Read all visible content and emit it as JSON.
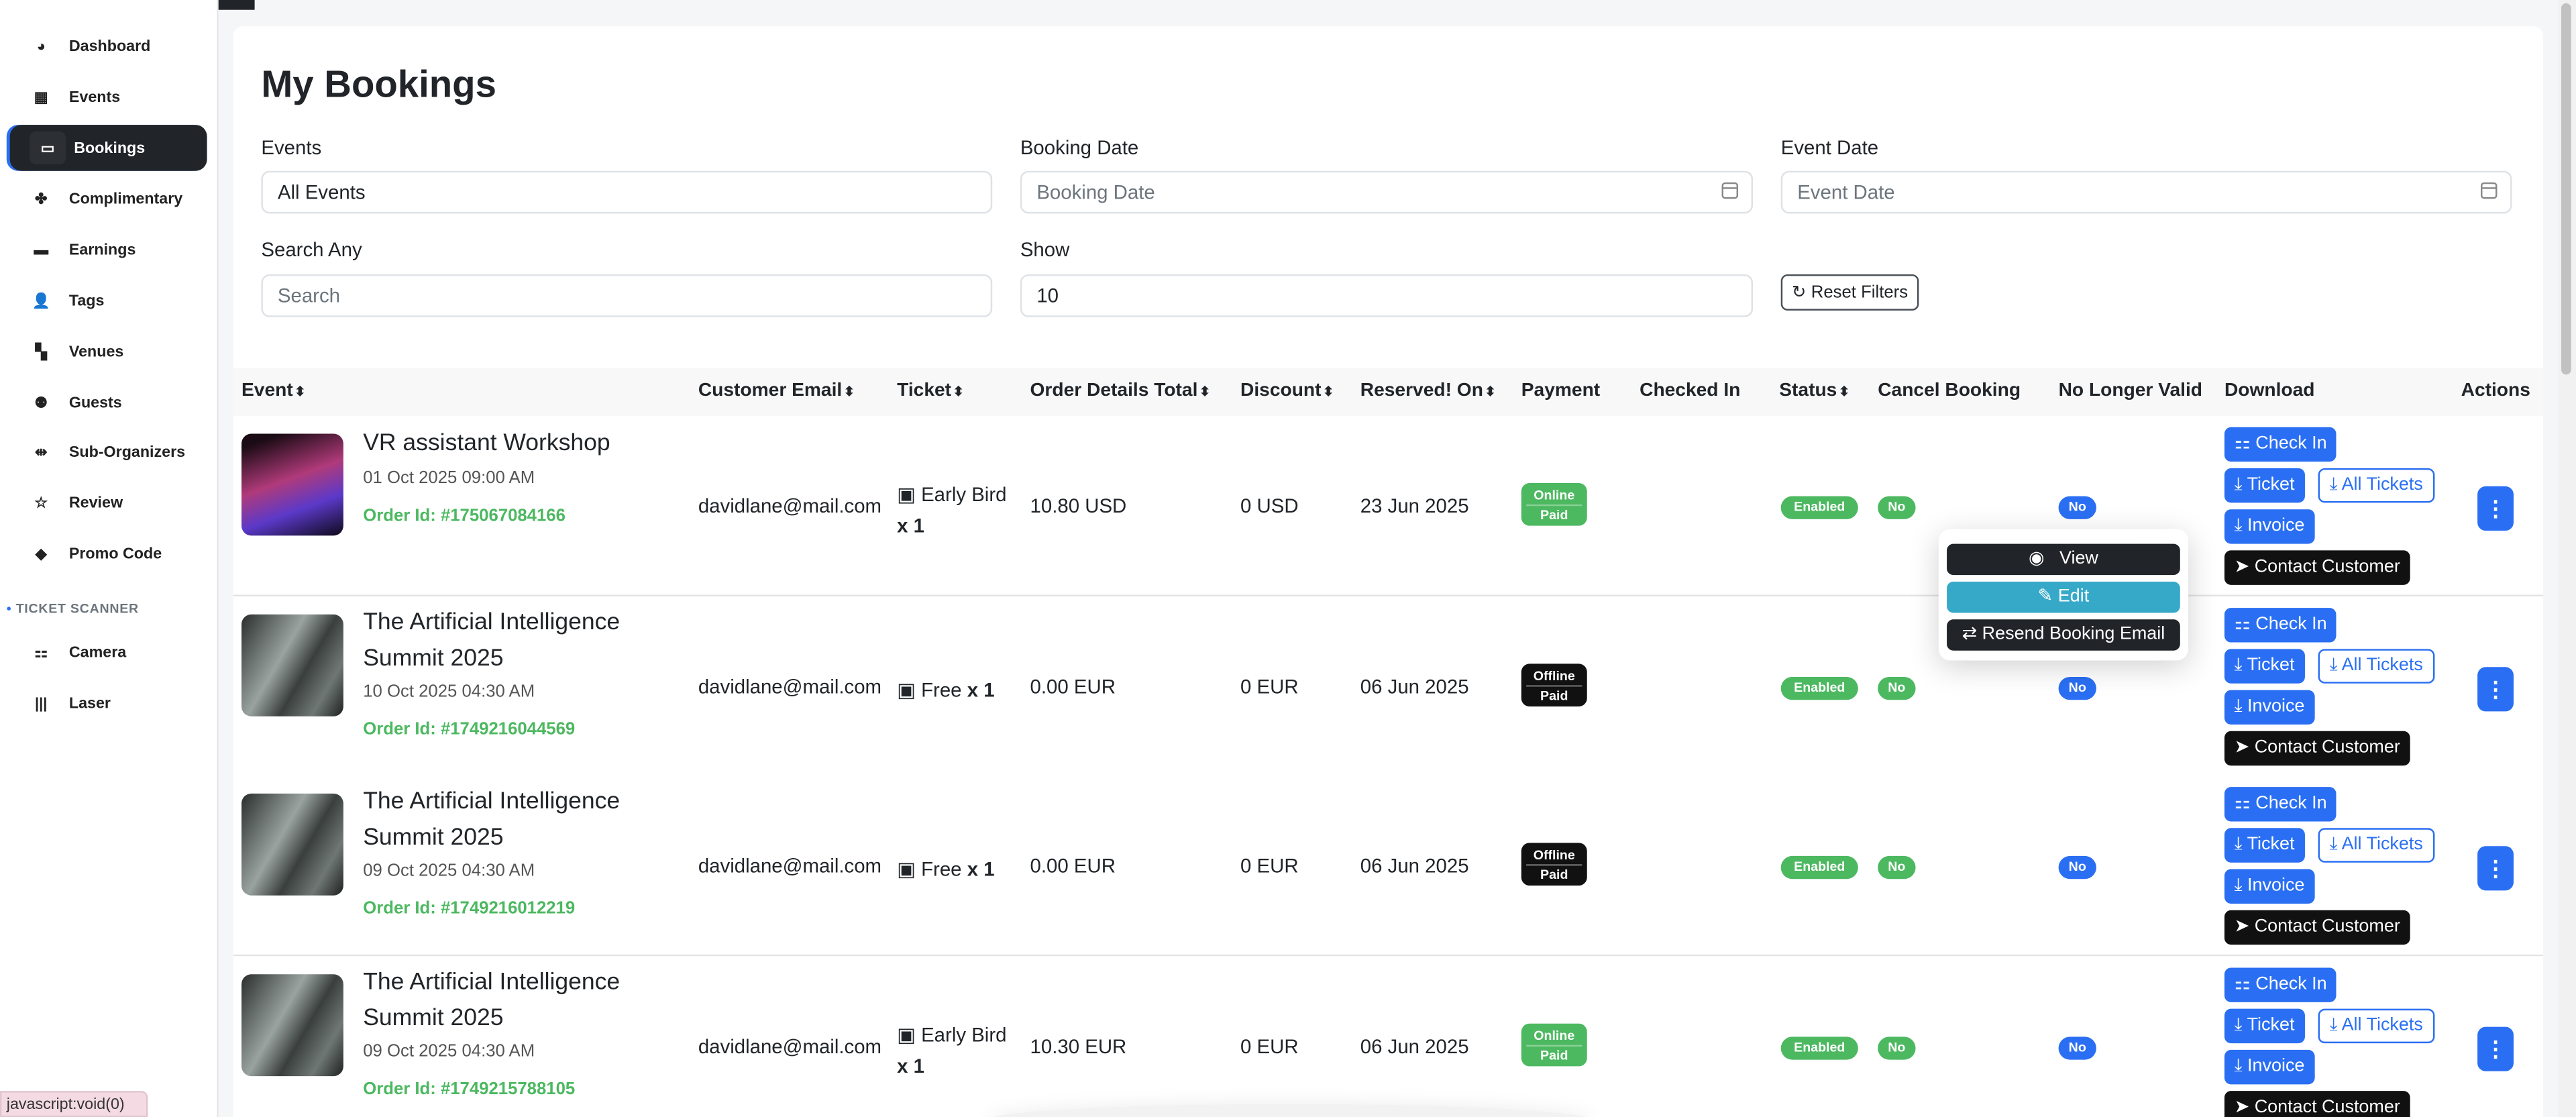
{
  "sidebar": {
    "items": [
      {
        "label": "Dashboard",
        "icon": "gauge-icon",
        "glyph": "◕"
      },
      {
        "label": "Events",
        "icon": "calendar-icon",
        "glyph": "▦"
      },
      {
        "label": "Bookings",
        "icon": "money-ticket-icon",
        "glyph": "▭",
        "active": true
      },
      {
        "label": "Complimentary",
        "icon": "puzzle-icon",
        "glyph": "✤"
      },
      {
        "label": "Earnings",
        "icon": "wallet-icon",
        "glyph": "▬"
      },
      {
        "label": "Tags",
        "icon": "user-tag-icon",
        "glyph": "👤"
      },
      {
        "label": "Venues",
        "icon": "map-icon",
        "glyph": "▚"
      },
      {
        "label": "Guests",
        "icon": "people-group-icon",
        "glyph": "⚉"
      },
      {
        "label": "Sub-Organizers",
        "icon": "people-arrows-icon",
        "glyph": "⇹"
      },
      {
        "label": "Review",
        "icon": "star-icon",
        "glyph": "☆"
      },
      {
        "label": "Promo Code",
        "icon": "tag-icon",
        "glyph": "◆"
      }
    ],
    "section_label": "TICKET SCANNER",
    "scanner_items": [
      {
        "label": "Camera",
        "icon": "qrcode-icon",
        "glyph": "⚏"
      },
      {
        "label": "Laser",
        "icon": "barcode-icon",
        "glyph": "|||"
      }
    ]
  },
  "page": {
    "title": "My Bookings"
  },
  "filters": {
    "events": {
      "label": "Events",
      "value": "All Events"
    },
    "booking_date": {
      "label": "Booking Date",
      "placeholder": "Booking Date"
    },
    "event_date": {
      "label": "Event Date",
      "placeholder": "Event Date"
    },
    "search": {
      "label": "Search Any",
      "placeholder": "Search"
    },
    "show": {
      "label": "Show",
      "value": "10"
    },
    "reset_label": "Reset Filters"
  },
  "table": {
    "headers": [
      "Event",
      "Customer Email",
      "Ticket",
      "Order Details Total",
      "Discount",
      "Reserved! On",
      "Payment",
      "Checked In",
      "Status",
      "Cancel Booking",
      "No Longer Valid",
      "Download",
      "Actions"
    ],
    "sortable": [
      true,
      true,
      true,
      true,
      true,
      true,
      false,
      false,
      true,
      false,
      false,
      false,
      false
    ],
    "rows": [
      {
        "title": "VR assistant Workshop",
        "date": "01 Oct 2025 09:00 AM",
        "order": "Order Id: #175067084166",
        "email": "davidlane@mail.com",
        "ticket": "Early Bird",
        "qty": "x 1",
        "total": "10.80 USD",
        "discount": "0 USD",
        "reserved": "23 Jun 2025",
        "payment": [
          "Online",
          "Paid"
        ],
        "payment_type": "online",
        "status": "Enabled",
        "cancel": "No",
        "no_longer_valid": "No",
        "thumb": "vr"
      },
      {
        "title": "The Artificial Intelligence Summit 2025",
        "date": "10 Oct 2025 04:30 AM",
        "order": "Order Id: #1749216044569",
        "email": "davidlane@mail.com",
        "ticket": "Free",
        "qty": "x 1",
        "total": "0.00 EUR",
        "discount": "0 EUR",
        "reserved": "06 Jun 2025",
        "payment": [
          "Offline",
          "Paid"
        ],
        "payment_type": "offline",
        "status": "Enabled",
        "cancel": "No",
        "no_longer_valid": "No",
        "thumb": "ai"
      },
      {
        "title": "The Artificial Intelligence Summit 2025",
        "date": "09 Oct 2025 04:30 AM",
        "order": "Order Id: #1749216012219",
        "email": "davidlane@mail.com",
        "ticket": "Free",
        "qty": "x 1",
        "total": "0.00 EUR",
        "discount": "0 EUR",
        "reserved": "06 Jun 2025",
        "payment": [
          "Offline",
          "Paid"
        ],
        "payment_type": "offline",
        "status": "Enabled",
        "cancel": "No",
        "no_longer_valid": "No",
        "thumb": "ai"
      },
      {
        "title": "The Artificial Intelligence Summit 2025",
        "date": "09 Oct 2025 04:30 AM",
        "order": "Order Id: #1749215788105",
        "email": "davidlane@mail.com",
        "ticket": "Early Bird",
        "qty": "x 1",
        "total": "10.30 EUR",
        "discount": "0 EUR",
        "reserved": "06 Jun 2025",
        "payment": [
          "Online",
          "Paid"
        ],
        "payment_type": "online",
        "status": "Enabled",
        "cancel": "No",
        "no_longer_valid": "No",
        "thumb": "ai"
      }
    ],
    "download_buttons": {
      "check_in": "Check In",
      "ticket": "Ticket",
      "all_tickets": "All Tickets",
      "invoice": "Invoice",
      "contact": "Contact Customer"
    }
  },
  "actions_menu": {
    "view": "View",
    "edit": "Edit",
    "resend": "Resend Booking Email"
  },
  "status_bar": "javascript:void(0)",
  "colors": {
    "primary": "#2a6ff3",
    "success": "#4cb860",
    "dark": "#212529",
    "info": "#36a9c9"
  }
}
